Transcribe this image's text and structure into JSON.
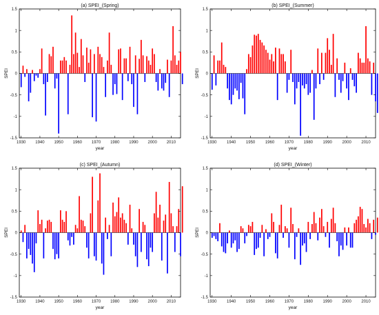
{
  "chart_data": [
    {
      "type": "bar",
      "title": "(a) SPEI_(Spring)",
      "xlabel": "year",
      "ylabel": "SPEI",
      "xlim": [
        1929,
        2015
      ],
      "ylim": [
        -1.5,
        1.5
      ],
      "xticks": [
        1930,
        1940,
        1950,
        1960,
        1970,
        1980,
        1990,
        2000,
        2010
      ],
      "yticks": [
        -1.5,
        -1,
        -0.5,
        0,
        0.5,
        1,
        1.5
      ],
      "positive_color": "#ff0000",
      "negative_color": "#0000ff",
      "start_year": 1930,
      "values": [
        -0.32,
        0.18,
        -0.08,
        0.1,
        -0.65,
        -0.45,
        0.08,
        -0.18,
        -0.05,
        -0.1,
        0.1,
        0.58,
        -0.25,
        -0.98,
        -0.2,
        0.45,
        0.4,
        0.62,
        -0.35,
        -0.12,
        -1.4,
        0.3,
        0.3,
        0.38,
        0.3,
        -0.95,
        0.2,
        1.35,
        0.45,
        0.95,
        0.48,
        0.15,
        0.8,
        0.42,
        -0.2,
        0.6,
        0.25,
        0.56,
        -1.02,
        0.45,
        -1.12,
        0.62,
        0.45,
        0.38,
        0.15,
        -0.55,
        0.3,
        0.95,
        0.2,
        -0.5,
        -0.25,
        -0.48,
        0.56,
        0.58,
        -0.62,
        0.35,
        0.35,
        -0.18,
        0.62,
        -0.25,
        -0.78,
        0.42,
        -0.95,
        0.34,
        0.78,
        0.42,
        -0.2,
        0.4,
        0.3,
        0.2,
        0.58,
        0.45,
        -0.2,
        -0.4,
        0.1,
        -0.35,
        -0.4,
        -0.22,
        0.32,
        -0.55,
        0.3,
        1.1,
        0.42,
        0.2,
        0.3,
        0.5,
        -0.25
      ]
    },
    {
      "type": "bar",
      "title": "(b) SPEI_(Summer)",
      "xlabel": "year",
      "ylabel": "SPEI",
      "xlim": [
        1929,
        2015
      ],
      "ylim": [
        -1.5,
        1.5
      ],
      "xticks": [
        1930,
        1940,
        1950,
        1960,
        1970,
        1980,
        1990,
        2000,
        2010
      ],
      "yticks": [
        -1.5,
        -1,
        -0.5,
        0,
        0.5,
        1,
        1.5
      ],
      "positive_color": "#ff0000",
      "negative_color": "#0000ff",
      "start_year": 1930,
      "values": [
        -0.38,
        0.42,
        -0.28,
        0.3,
        0.3,
        0.72,
        0.2,
        0.15,
        -0.35,
        -0.62,
        -0.72,
        -0.5,
        -0.35,
        -0.4,
        -0.6,
        -0.22,
        -0.58,
        -0.95,
        0.1,
        0.45,
        0.38,
        0.65,
        0.9,
        0.88,
        0.92,
        0.78,
        0.72,
        0.65,
        0.55,
        0.48,
        0.32,
        0.45,
        0.28,
        0.6,
        -0.62,
        0.58,
        0.45,
        0.45,
        0.28,
        -0.45,
        -0.15,
        0.55,
        -0.2,
        -0.72,
        -0.35,
        -0.2,
        -1.45,
        -0.28,
        -0.35,
        -0.25,
        -0.5,
        -0.45,
        0.08,
        -1.08,
        -0.35,
        0.58,
        -0.25,
        0.48,
        -0.15,
        0.48,
        0.82,
        0.55,
        0.2,
        0.92,
        -0.55,
        0.35,
        -0.15,
        -0.45,
        -0.18,
        0.25,
        -0.35,
        -0.62,
        0.12,
        -0.15,
        -0.3,
        -0.45,
        0.48,
        0.35,
        0.25,
        0.25,
        1.1,
        0.35,
        0.28,
        -0.5,
        0.25,
        -0.65,
        -0.92
      ]
    },
    {
      "type": "bar",
      "title": "(c) SPEI_(Autumn)",
      "xlabel": "year",
      "ylabel": "SPEI",
      "xlim": [
        1929,
        2015
      ],
      "ylim": [
        -1.5,
        1.5
      ],
      "xticks": [
        1930,
        1940,
        1950,
        1960,
        1970,
        1980,
        1990,
        2000,
        2010
      ],
      "yticks": [
        -1.5,
        -1,
        -0.5,
        0,
        0.5,
        1,
        1.5
      ],
      "positive_color": "#ff0000",
      "negative_color": "#0000ff",
      "start_year": 1930,
      "values": [
        0.05,
        -0.22,
        0.18,
        -0.6,
        -0.38,
        -0.52,
        -0.72,
        -0.92,
        -0.25,
        0.52,
        0.2,
        0.3,
        -0.6,
        0.1,
        0.28,
        0.3,
        0.25,
        -0.38,
        -0.62,
        -0.5,
        -0.6,
        0.52,
        0.3,
        0.25,
        0.5,
        -0.18,
        -0.3,
        -0.1,
        -0.28,
        0.18,
        0.1,
        0.85,
        0.3,
        0.28,
        0.15,
        -0.35,
        -0.6,
        0.45,
        1.3,
        -0.55,
        -0.65,
        0.75,
        1.38,
        -0.72,
        -0.98,
        0.35,
        -0.15,
        0.18,
        -0.55,
        0.7,
        0.38,
        0.48,
        0.82,
        0.35,
        0.45,
        0.3,
        0.22,
        -0.28,
        0.65,
        0.1,
        -0.28,
        -0.55,
        -0.8,
        0.55,
        -0.45,
        0.25,
        0.18,
        -0.62,
        -0.78,
        -0.35,
        -0.45,
        0.45,
        0.95,
        0.35,
        0.65,
        -0.65,
        0.28,
        0.42,
        -0.95,
        1.18,
        0.45,
        0.15,
        -0.45,
        0.15,
        0.55,
        -0.55,
        1.08
      ]
    },
    {
      "type": "bar",
      "title": "(d) SPEI_(Winter)",
      "xlabel": "year",
      "ylabel": "SPEI",
      "xlim": [
        1929,
        2015
      ],
      "ylim": [
        -1.5,
        1.5
      ],
      "xticks": [
        1930,
        1940,
        1950,
        1960,
        1970,
        1980,
        1990,
        2000,
        2010
      ],
      "yticks": [
        -1.5,
        -1,
        -0.5,
        0,
        0.5,
        1,
        1.5
      ],
      "positive_color": "#ff0000",
      "negative_color": "#0000ff",
      "start_year": 1930,
      "values": [
        -0.12,
        -0.08,
        -0.15,
        -0.2,
        0.22,
        -0.32,
        -0.45,
        -0.48,
        -0.25,
        0.05,
        -0.35,
        -0.25,
        -0.18,
        -0.45,
        -0.38,
        0.15,
        0.1,
        -0.25,
        -0.08,
        0.18,
        0.15,
        0.25,
        -0.52,
        -0.38,
        -0.35,
        -0.12,
        0.18,
        -0.55,
        0.08,
        -0.15,
        -0.1,
        0.45,
        0.25,
        -0.48,
        -0.6,
        0.18,
        0.65,
        -0.12,
        0.15,
        0.1,
        -0.35,
        0.58,
        0.2,
        -0.62,
        -0.1,
        0.1,
        -0.75,
        -0.3,
        -0.25,
        -0.45,
        0.25,
        -0.15,
        0.2,
        0.48,
        0.22,
        -0.18,
        0.35,
        0.55,
        0.15,
        -0.1,
        0.25,
        -0.35,
        0.32,
        0.58,
        0.22,
        -0.2,
        -0.55,
        -0.3,
        -0.4,
        0.12,
        -0.3,
        0.12,
        -0.35,
        -0.35,
        0.22,
        0.3,
        0.38,
        0.6,
        0.55,
        0.2,
        0.12,
        0.32,
        0.22,
        -0.15,
        0.3,
        -0.05,
        0.35
      ]
    }
  ]
}
